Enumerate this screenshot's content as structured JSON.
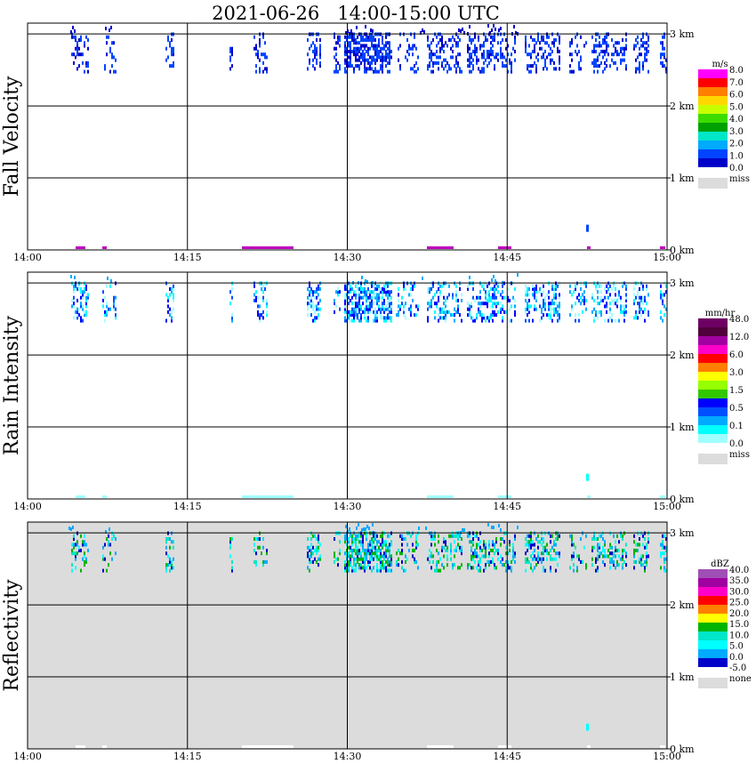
{
  "title": "2021-06-26   14:00-15:00 UTC",
  "chart_data": [
    {
      "type": "heatmap",
      "ylabel": "Fall Velocity",
      "x_ticks": [
        "14:00",
        "14:15",
        "14:30",
        "14:45",
        "15:00"
      ],
      "y_ticks": [
        "0 km",
        "1 km",
        "2 km",
        "3 km"
      ],
      "xlim": [
        "14:00",
        "15:00"
      ],
      "ylim_km": [
        0,
        3.15
      ],
      "background": "#ffffff",
      "colorbar": {
        "unit": "m/s",
        "labels": [
          "8.0",
          "7.0",
          "6.0",
          "5.0",
          "4.0",
          "3.0",
          "2.0",
          "1.0",
          "0.0"
        ],
        "colors": [
          "#ff00ff",
          "#ff0000",
          "#ff7f00",
          "#ffd700",
          "#c8ff00",
          "#3cdc00",
          "#00a000",
          "#00e6c8",
          "#00aaff",
          "#0044ff",
          "#0000c8"
        ],
        "miss_label": "miss",
        "miss_color": "#dcdcdc"
      }
    },
    {
      "type": "heatmap",
      "ylabel": "Rain Intensity",
      "x_ticks": [
        "14:00",
        "14:15",
        "14:30",
        "14:45",
        "15:00"
      ],
      "y_ticks": [
        "0 km",
        "1 km",
        "2 km",
        "3 km"
      ],
      "xlim": [
        "14:00",
        "15:00"
      ],
      "ylim_km": [
        0,
        3.15
      ],
      "background": "#ffffff",
      "colorbar": {
        "unit": "mm/hr",
        "labels": [
          "48.0",
          "12.0",
          "6.0",
          "3.0",
          "1.5",
          "0.5",
          "0.1",
          "0.0"
        ],
        "colors": [
          "#6e0064",
          "#50003c",
          "#a000a0",
          "#ff00c8",
          "#ff0000",
          "#ff7f00",
          "#ffff00",
          "#96ff00",
          "#32c800",
          "#0000ff",
          "#0050ff",
          "#00aaff",
          "#00ffff",
          "#a0ffff"
        ],
        "miss_label": "miss",
        "miss_color": "#dcdcdc"
      }
    },
    {
      "type": "heatmap",
      "ylabel": "Reflectivity",
      "x_ticks": [
        "14:00",
        "14:15",
        "14:30",
        "14:45",
        "15:00"
      ],
      "y_ticks": [
        "0 km",
        "1 km",
        "2 km",
        "3 km"
      ],
      "xlim": [
        "14:00",
        "15:00"
      ],
      "ylim_km": [
        0,
        3.15
      ],
      "background": "#dcdcdc",
      "colorbar": {
        "unit": "dBZ",
        "labels": [
          "40.0",
          "35.0",
          "30.0",
          "25.0",
          "20.0",
          "15.0",
          "10.0",
          "5.0",
          "0.0",
          "-5.0"
        ],
        "colors": [
          "#a050b4",
          "#a000a0",
          "#ff00c8",
          "#ff0000",
          "#ff7f00",
          "#ffff00",
          "#00b400",
          "#00e6c8",
          "#00ffff",
          "#00aaff",
          "#0000c8"
        ],
        "miss_label": "none",
        "miss_color": "#dcdcdc"
      }
    }
  ]
}
